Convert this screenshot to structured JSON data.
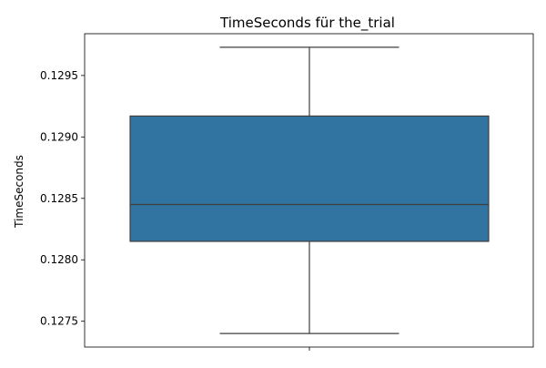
{
  "chart_data": {
    "type": "box",
    "title": "TimeSeconds für the_trial",
    "xlabel": "",
    "ylabel": "TimeSeconds",
    "ylim": [
      0.12729,
      0.12984
    ],
    "yticks": [
      0.1275,
      0.128,
      0.1285,
      0.129,
      0.1295
    ],
    "ytick_labels": [
      "0.1275",
      "0.1280",
      "0.1285",
      "0.1290",
      "0.1295"
    ],
    "xtick_labels": [
      ""
    ],
    "grid": false,
    "box": {
      "whisker_low": 0.1274,
      "q1": 0.12815,
      "median": 0.12845,
      "q3": 0.12917,
      "whisker_high": 0.12973
    },
    "colors": {
      "box_fill": "#3274a1",
      "line": "#3f3f3f",
      "axes": "#000000"
    }
  }
}
